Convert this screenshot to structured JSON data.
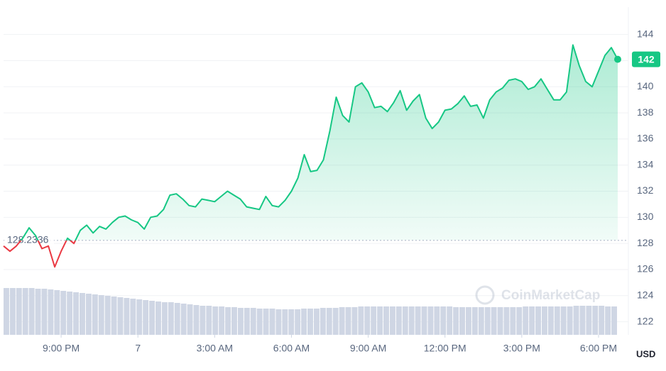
{
  "chart_data": {
    "type": "line",
    "values": [
      127.8,
      127.4,
      127.8,
      128.4,
      129.2,
      128.6,
      127.6,
      127.8,
      126.2,
      127.4,
      128.4,
      128.0,
      129.0,
      129.4,
      128.8,
      129.3,
      129.1,
      129.6,
      130.0,
      130.1,
      129.8,
      129.6,
      129.1,
      130.0,
      130.1,
      130.6,
      131.7,
      131.8,
      131.4,
      130.9,
      130.8,
      131.4,
      131.3,
      131.2,
      131.6,
      132.0,
      131.7,
      131.4,
      130.8,
      130.7,
      130.6,
      131.6,
      130.9,
      130.8,
      131.3,
      132.0,
      133.0,
      134.8,
      133.5,
      133.6,
      134.4,
      136.6,
      139.2,
      137.8,
      137.3,
      140.0,
      140.3,
      139.6,
      138.4,
      138.5,
      138.1,
      138.8,
      139.7,
      138.2,
      138.9,
      139.4,
      137.6,
      136.8,
      137.3,
      138.2,
      138.3,
      138.7,
      139.3,
      138.5,
      138.6,
      137.6,
      139.0,
      139.6,
      139.9,
      140.5,
      140.6,
      140.4,
      139.8,
      140.0,
      140.6,
      139.8,
      139.0,
      139.0,
      139.6,
      143.2,
      141.6,
      140.4,
      140.0,
      141.2,
      142.4,
      143.0,
      142.1
    ],
    "volume": [
      66,
      66,
      66,
      66,
      66,
      65,
      65,
      64,
      63,
      62,
      61,
      60,
      59,
      58,
      57,
      56,
      55,
      54,
      53,
      52,
      51,
      50,
      49,
      48,
      47,
      46,
      46,
      45,
      44,
      43,
      42,
      41,
      41,
      40,
      40,
      39,
      39,
      38,
      38,
      38,
      37,
      37,
      37,
      36,
      36,
      36,
      36,
      37,
      37,
      37,
      38,
      38,
      38,
      39,
      39,
      39,
      40,
      40,
      40,
      40,
      40,
      40,
      40,
      40,
      40,
      40,
      40,
      40,
      40,
      40,
      40,
      39,
      39,
      39,
      39,
      39,
      39,
      39,
      39,
      39,
      39,
      39,
      40,
      40,
      40,
      40,
      40,
      40,
      40,
      40,
      41,
      41,
      41,
      41,
      41,
      40,
      40
    ],
    "color_up": "#16c784",
    "color_down": "#ea3943",
    "volume_color": "#cfd6e4",
    "baseline": 128.2336,
    "baseline_label": "128.2336",
    "current_label": "142",
    "xlim": [
      0,
      96
    ],
    "xticks": [
      {
        "value": 9,
        "label": "9:00 PM"
      },
      {
        "value": 21,
        "label": "7"
      },
      {
        "value": 33,
        "label": "3:00 AM"
      },
      {
        "value": 45,
        "label": "6:00 AM"
      },
      {
        "value": 57,
        "label": "9:00 AM"
      },
      {
        "value": 69,
        "label": "12:00 PM"
      },
      {
        "value": 81,
        "label": "3:00 PM"
      },
      {
        "value": 93,
        "label": "6:00 PM"
      }
    ],
    "ylim": [
      121,
      146.1
    ],
    "yticks": [
      122,
      124,
      126,
      128,
      130,
      132,
      134,
      136,
      138,
      140,
      142,
      144
    ],
    "y_unit": "USD",
    "watermark": "CoinMarketCap",
    "grid": true
  }
}
